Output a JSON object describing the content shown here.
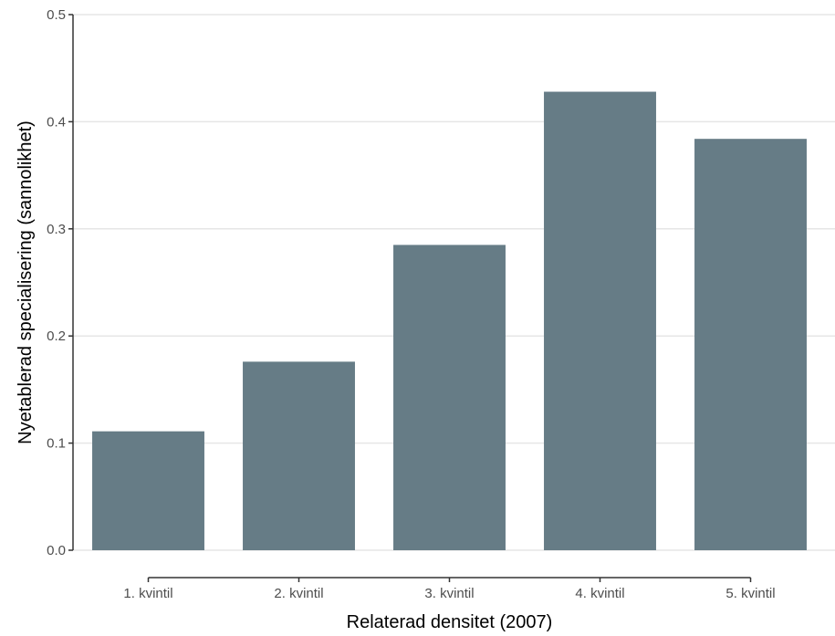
{
  "chart_data": {
    "type": "bar",
    "title": "",
    "xlabel": "Relaterad densitet (2007)",
    "ylabel": "Nyetablerad specialisering (sannolikhet)",
    "categories": [
      "1. kvintil",
      "2. kvintil",
      "3. kvintil",
      "4. kvintil",
      "5. kvintil"
    ],
    "values": [
      0.111,
      0.176,
      0.285,
      0.428,
      0.384
    ],
    "ylim": [
      0,
      0.5
    ],
    "yticks": [
      "0.0",
      "0.1",
      "0.2",
      "0.3",
      "0.4",
      "0.5"
    ],
    "grid": true,
    "bar_color": "#667c86",
    "grid_color": "#e6e6e6",
    "axis_color": "#333333"
  }
}
